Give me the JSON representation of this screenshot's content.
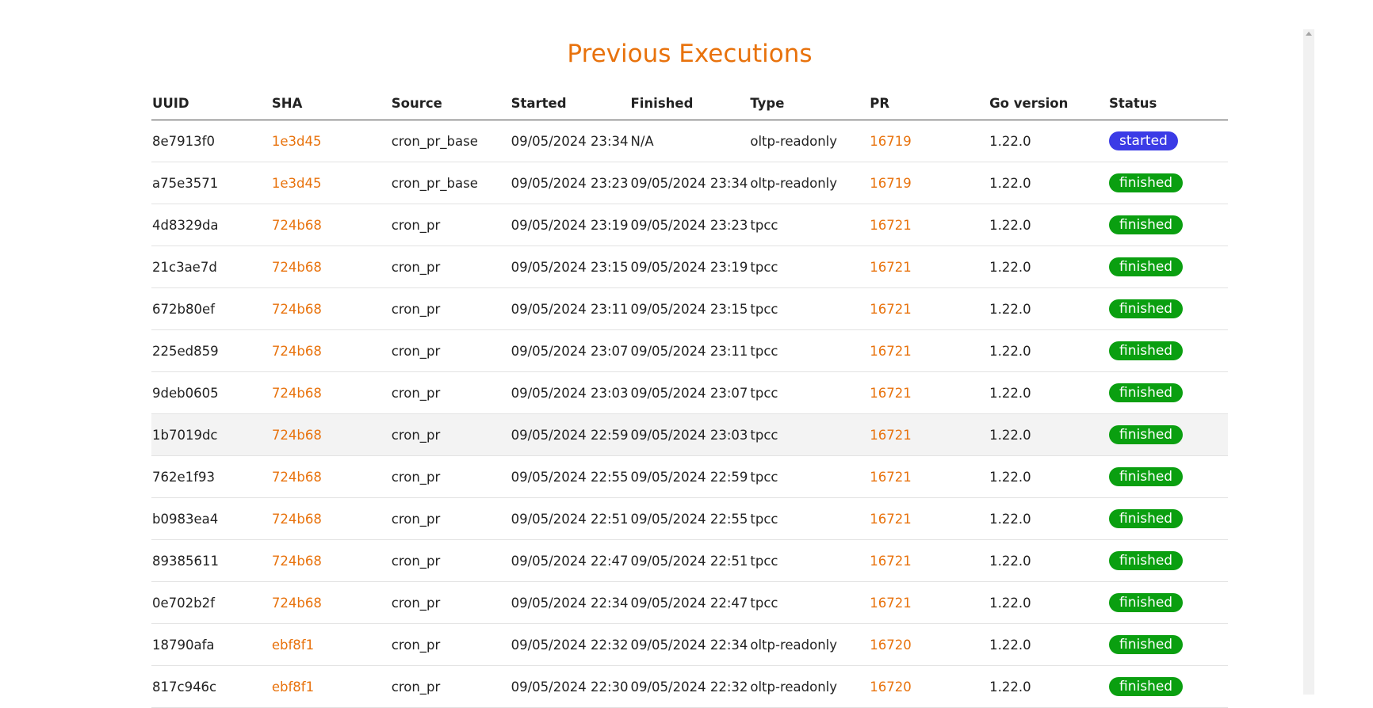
{
  "header": {
    "title": "Previous Executions"
  },
  "table": {
    "columns": [
      "UUID",
      "SHA",
      "Source",
      "Started",
      "Finished",
      "Type",
      "PR",
      "Go version",
      "Status"
    ],
    "rows": [
      [
        "8e7913f0",
        "1e3d45",
        "cron_pr_base",
        "09/05/2024 23:34",
        "N/A",
        "oltp-readonly",
        "16719",
        "1.22.0",
        "started"
      ],
      [
        "a75e3571",
        "1e3d45",
        "cron_pr_base",
        "09/05/2024 23:23",
        "09/05/2024 23:34",
        "oltp-readonly",
        "16719",
        "1.22.0",
        "finished"
      ],
      [
        "4d8329da",
        "724b68",
        "cron_pr",
        "09/05/2024 23:19",
        "09/05/2024 23:23",
        "tpcc",
        "16721",
        "1.22.0",
        "finished"
      ],
      [
        "21c3ae7d",
        "724b68",
        "cron_pr",
        "09/05/2024 23:15",
        "09/05/2024 23:19",
        "tpcc",
        "16721",
        "1.22.0",
        "finished"
      ],
      [
        "672b80ef",
        "724b68",
        "cron_pr",
        "09/05/2024 23:11",
        "09/05/2024 23:15",
        "tpcc",
        "16721",
        "1.22.0",
        "finished"
      ],
      [
        "225ed859",
        "724b68",
        "cron_pr",
        "09/05/2024 23:07",
        "09/05/2024 23:11",
        "tpcc",
        "16721",
        "1.22.0",
        "finished"
      ],
      [
        "9deb0605",
        "724b68",
        "cron_pr",
        "09/05/2024 23:03",
        "09/05/2024 23:07",
        "tpcc",
        "16721",
        "1.22.0",
        "finished"
      ],
      [
        "1b7019dc",
        "724b68",
        "cron_pr",
        "09/05/2024 22:59",
        "09/05/2024 23:03",
        "tpcc",
        "16721",
        "1.22.0",
        "finished"
      ],
      [
        "762e1f93",
        "724b68",
        "cron_pr",
        "09/05/2024 22:55",
        "09/05/2024 22:59",
        "tpcc",
        "16721",
        "1.22.0",
        "finished"
      ],
      [
        "b0983ea4",
        "724b68",
        "cron_pr",
        "09/05/2024 22:51",
        "09/05/2024 22:55",
        "tpcc",
        "16721",
        "1.22.0",
        "finished"
      ],
      [
        "89385611",
        "724b68",
        "cron_pr",
        "09/05/2024 22:47",
        "09/05/2024 22:51",
        "tpcc",
        "16721",
        "1.22.0",
        "finished"
      ],
      [
        "0e702b2f",
        "724b68",
        "cron_pr",
        "09/05/2024 22:34",
        "09/05/2024 22:47",
        "tpcc",
        "16721",
        "1.22.0",
        "finished"
      ],
      [
        "18790afa",
        "ebf8f1",
        "cron_pr",
        "09/05/2024 22:32",
        "09/05/2024 22:34",
        "oltp-readonly",
        "16720",
        "1.22.0",
        "finished"
      ],
      [
        "817c946c",
        "ebf8f1",
        "cron_pr",
        "09/05/2024 22:30",
        "09/05/2024 22:32",
        "oltp-readonly",
        "16720",
        "1.22.0",
        "finished"
      ]
    ]
  }
}
